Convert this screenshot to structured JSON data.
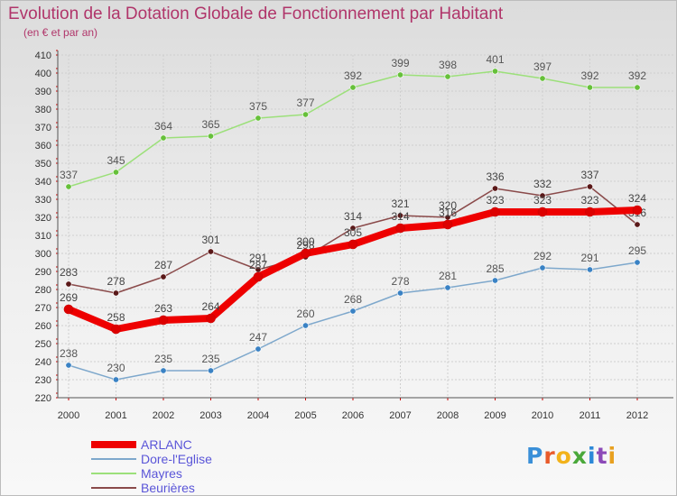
{
  "header": {
    "title": "Evolution de la Dotation Globale de Fonctionnement par Habitant",
    "subtitle": "(en € et par an)"
  },
  "brand": {
    "text": "Proxiti",
    "letters": [
      "P",
      "r",
      "o",
      "x",
      "i",
      "t",
      "i"
    ],
    "colors": [
      "#3a8fd8",
      "#e85a2a",
      "#f2b21a",
      "#4aa83a",
      "#2c88d8",
      "#8c4ab8",
      "#e8a020"
    ]
  },
  "chart_data": {
    "type": "line",
    "title": "Evolution de la Dotation Globale de Fonctionnement par Habitant",
    "subtitle": "(en € et par an)",
    "xlabel": "",
    "ylabel": "",
    "x": [
      "2000",
      "2001",
      "2002",
      "2003",
      "2004",
      "2005",
      "2006",
      "2007",
      "2008",
      "2009",
      "2010",
      "2011",
      "2012"
    ],
    "ylim": [
      220,
      410
    ],
    "yticks": [
      220,
      230,
      240,
      250,
      260,
      270,
      280,
      290,
      300,
      310,
      320,
      330,
      340,
      350,
      360,
      370,
      380,
      390,
      400,
      410
    ],
    "grid": true,
    "legend_position": "bottom-left",
    "series": [
      {
        "name": "ARLANC",
        "color": "#ee0000",
        "marker": "#dd0000",
        "thick": true,
        "label_color": "#444444",
        "values": [
          269,
          258,
          263,
          264,
          287,
          300,
          305,
          314,
          316,
          323,
          323,
          323,
          324
        ]
      },
      {
        "name": "Dore-l'Eglise",
        "color": "#7ea8cc",
        "marker": "#3a82c4",
        "thick": false,
        "label_color": "#555555",
        "values": [
          238,
          230,
          235,
          235,
          247,
          260,
          268,
          278,
          281,
          285,
          292,
          291,
          295
        ]
      },
      {
        "name": "Mayres",
        "color": "#9ce07a",
        "marker": "#66c03a",
        "thick": false,
        "label_color": "#555555",
        "values": [
          337,
          345,
          364,
          365,
          375,
          377,
          392,
          399,
          398,
          401,
          397,
          392,
          392
        ]
      },
      {
        "name": "Beurières",
        "color": "#8a4a4a",
        "marker": "#5a1818",
        "thick": false,
        "label_color": "#444444",
        "values": [
          283,
          278,
          287,
          301,
          291,
          298,
          314,
          321,
          320,
          336,
          332,
          337,
          316
        ]
      }
    ]
  }
}
